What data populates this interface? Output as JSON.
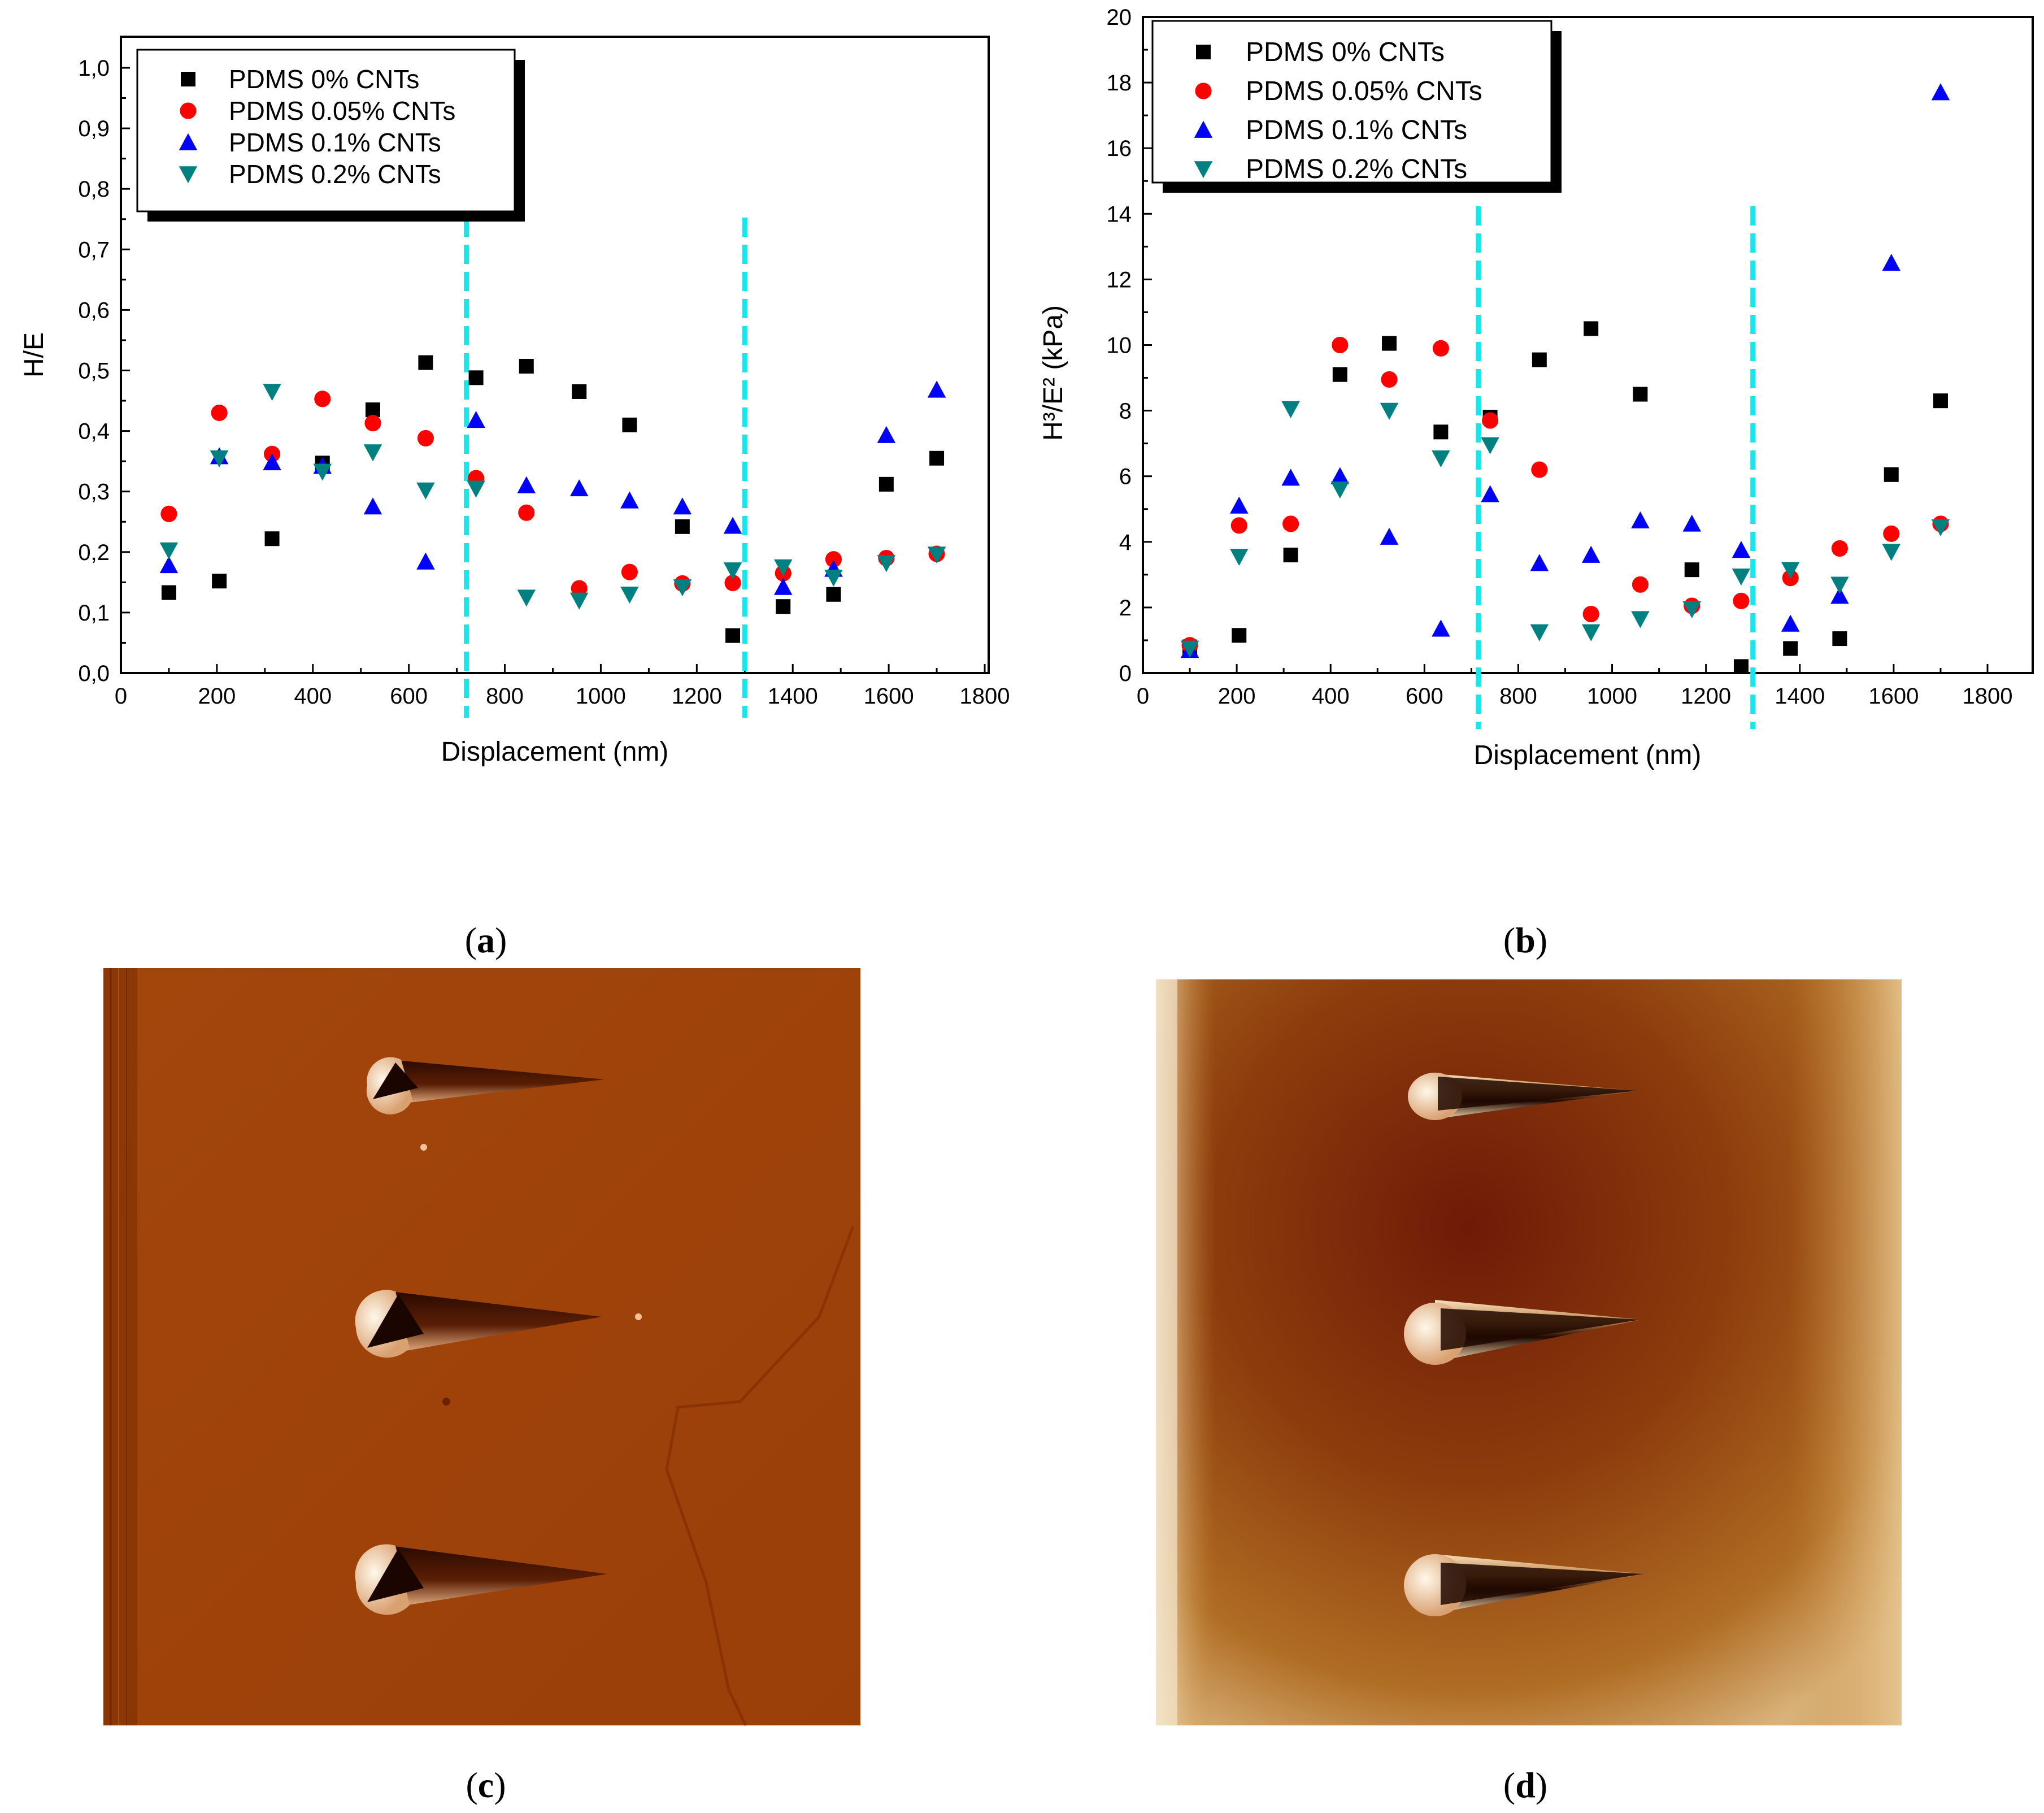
{
  "chart_data": [
    {
      "type": "scatter",
      "panel": "a",
      "xlabel": "Displacement (nm)",
      "ylabel": "H/E",
      "xlim": [
        0,
        1900
      ],
      "ylim": [
        0,
        1.05
      ],
      "xticks": [
        0,
        200,
        400,
        600,
        800,
        1000,
        1200,
        1400,
        1600,
        1800
      ],
      "xtick_labels": [
        "0",
        "200",
        "400",
        "600",
        "800",
        "1000",
        "1200",
        "1400",
        "1600",
        "1800"
      ],
      "yticks": [
        0,
        0.1,
        0.2,
        0.3,
        0.4,
        0.5,
        0.6,
        0.7,
        0.8,
        0.9,
        1.0
      ],
      "ytick_labels": [
        "0,0",
        "0,1",
        "0,2",
        "0,3",
        "0,4",
        "0,5",
        "0,6",
        "0,7",
        "0,8",
        "0,9",
        "1,0"
      ],
      "vlines": [
        720,
        1300
      ],
      "legend_position": "top-left",
      "series": [
        {
          "name": "PDMS 0% CNTs",
          "marker": "square",
          "color": "#000000",
          "x": [
            100,
            205,
            315,
            420,
            525,
            635,
            740,
            845,
            955,
            1060,
            1170,
            1275,
            1380,
            1485,
            1595,
            1700
          ],
          "y": [
            0.133,
            0.152,
            0.222,
            0.347,
            0.435,
            0.513,
            0.488,
            0.507,
            0.465,
            0.41,
            0.242,
            0.062,
            0.11,
            0.13,
            0.312,
            0.355
          ]
        },
        {
          "name": "PDMS 0.05% CNTs",
          "marker": "circle",
          "color": "#ff0000",
          "x": [
            100,
            205,
            315,
            420,
            525,
            635,
            740,
            845,
            955,
            1060,
            1170,
            1275,
            1380,
            1485,
            1595,
            1700
          ],
          "y": [
            0.263,
            0.43,
            0.362,
            0.453,
            0.413,
            0.388,
            0.322,
            0.265,
            0.14,
            0.167,
            0.148,
            0.149,
            0.165,
            0.188,
            0.19,
            0.197
          ]
        },
        {
          "name": "PDMS 0.1% CNTs",
          "marker": "triangle-up",
          "color": "#0000ff",
          "x": [
            100,
            205,
            315,
            420,
            525,
            635,
            740,
            845,
            955,
            1060,
            1170,
            1275,
            1380,
            1485,
            1595,
            1700
          ],
          "y": [
            0.178,
            0.358,
            0.348,
            0.342,
            0.275,
            0.184,
            0.418,
            0.31,
            0.305,
            0.285,
            0.275,
            0.243,
            0.142,
            0.172,
            0.393,
            0.468
          ]
        },
        {
          "name": "PDMS 0.2% CNTs",
          "marker": "triangle-down",
          "color": "#008080",
          "x": [
            100,
            205,
            315,
            420,
            525,
            635,
            740,
            845,
            955,
            1060,
            1170,
            1275,
            1380,
            1485,
            1595,
            1700
          ],
          "y": [
            0.203,
            0.355,
            0.465,
            0.333,
            0.365,
            0.302,
            0.305,
            0.125,
            0.12,
            0.13,
            0.142,
            0.17,
            0.175,
            0.158,
            0.182,
            0.196
          ]
        }
      ]
    },
    {
      "type": "scatter",
      "panel": "b",
      "xlabel": "Displacement (nm)",
      "ylabel": "H³/E² (kPa)",
      "xlim": [
        0,
        1900
      ],
      "ylim": [
        0,
        20
      ],
      "xticks": [
        0,
        200,
        400,
        600,
        800,
        1000,
        1200,
        1400,
        1600,
        1800
      ],
      "xtick_labels": [
        "0",
        "200",
        "400",
        "600",
        "800",
        "1000",
        "1200",
        "1400",
        "1600",
        "1800"
      ],
      "yticks": [
        0,
        2,
        4,
        6,
        8,
        10,
        12,
        14,
        16,
        18,
        20
      ],
      "ytick_labels": [
        "0",
        "2",
        "4",
        "6",
        "8",
        "10",
        "12",
        "14",
        "16",
        "18",
        "20"
      ],
      "vlines": [
        715,
        1300
      ],
      "legend_position": "top-left",
      "series": [
        {
          "name": "PDMS 0% CNTs",
          "marker": "square",
          "color": "#000000",
          "x": [
            100,
            205,
            315,
            420,
            525,
            635,
            740,
            845,
            955,
            1060,
            1170,
            1275,
            1380,
            1485,
            1595,
            1700
          ],
          "y": [
            0.8,
            1.15,
            3.6,
            9.1,
            10.05,
            7.35,
            7.8,
            9.55,
            10.5,
            8.5,
            3.15,
            0.2,
            0.75,
            1.05,
            6.05,
            8.3
          ]
        },
        {
          "name": "PDMS 0.05% CNTs",
          "marker": "circle",
          "color": "#ff0000",
          "x": [
            100,
            205,
            315,
            420,
            525,
            635,
            740,
            845,
            955,
            1060,
            1170,
            1275,
            1380,
            1485,
            1595,
            1700
          ],
          "y": [
            0.85,
            4.5,
            4.55,
            10.0,
            8.95,
            9.9,
            7.7,
            6.2,
            1.8,
            2.7,
            2.05,
            2.2,
            2.9,
            3.8,
            4.25,
            4.55
          ]
        },
        {
          "name": "PDMS 0.1% CNTs",
          "marker": "triangle-up",
          "color": "#0000ff",
          "x": [
            100,
            205,
            315,
            420,
            525,
            635,
            740,
            845,
            955,
            1060,
            1170,
            1275,
            1380,
            1485,
            1595,
            1700
          ],
          "y": [
            0.7,
            5.1,
            5.95,
            6.0,
            4.15,
            1.35,
            5.45,
            3.35,
            3.6,
            4.65,
            4.55,
            3.75,
            1.5,
            2.35,
            12.5,
            17.7
          ]
        },
        {
          "name": "PDMS 0.2% CNTs",
          "marker": "triangle-down",
          "color": "#008080",
          "x": [
            100,
            205,
            315,
            420,
            525,
            635,
            740,
            845,
            955,
            1060,
            1170,
            1275,
            1380,
            1485,
            1595,
            1700
          ],
          "y": [
            0.75,
            3.55,
            8.05,
            5.6,
            8.0,
            6.55,
            6.95,
            1.25,
            1.25,
            1.65,
            1.95,
            2.95,
            3.15,
            2.7,
            3.7,
            4.45
          ]
        }
      ]
    }
  ],
  "panel_labels": {
    "a": "a",
    "b": "b",
    "c": "c",
    "d": "d"
  }
}
